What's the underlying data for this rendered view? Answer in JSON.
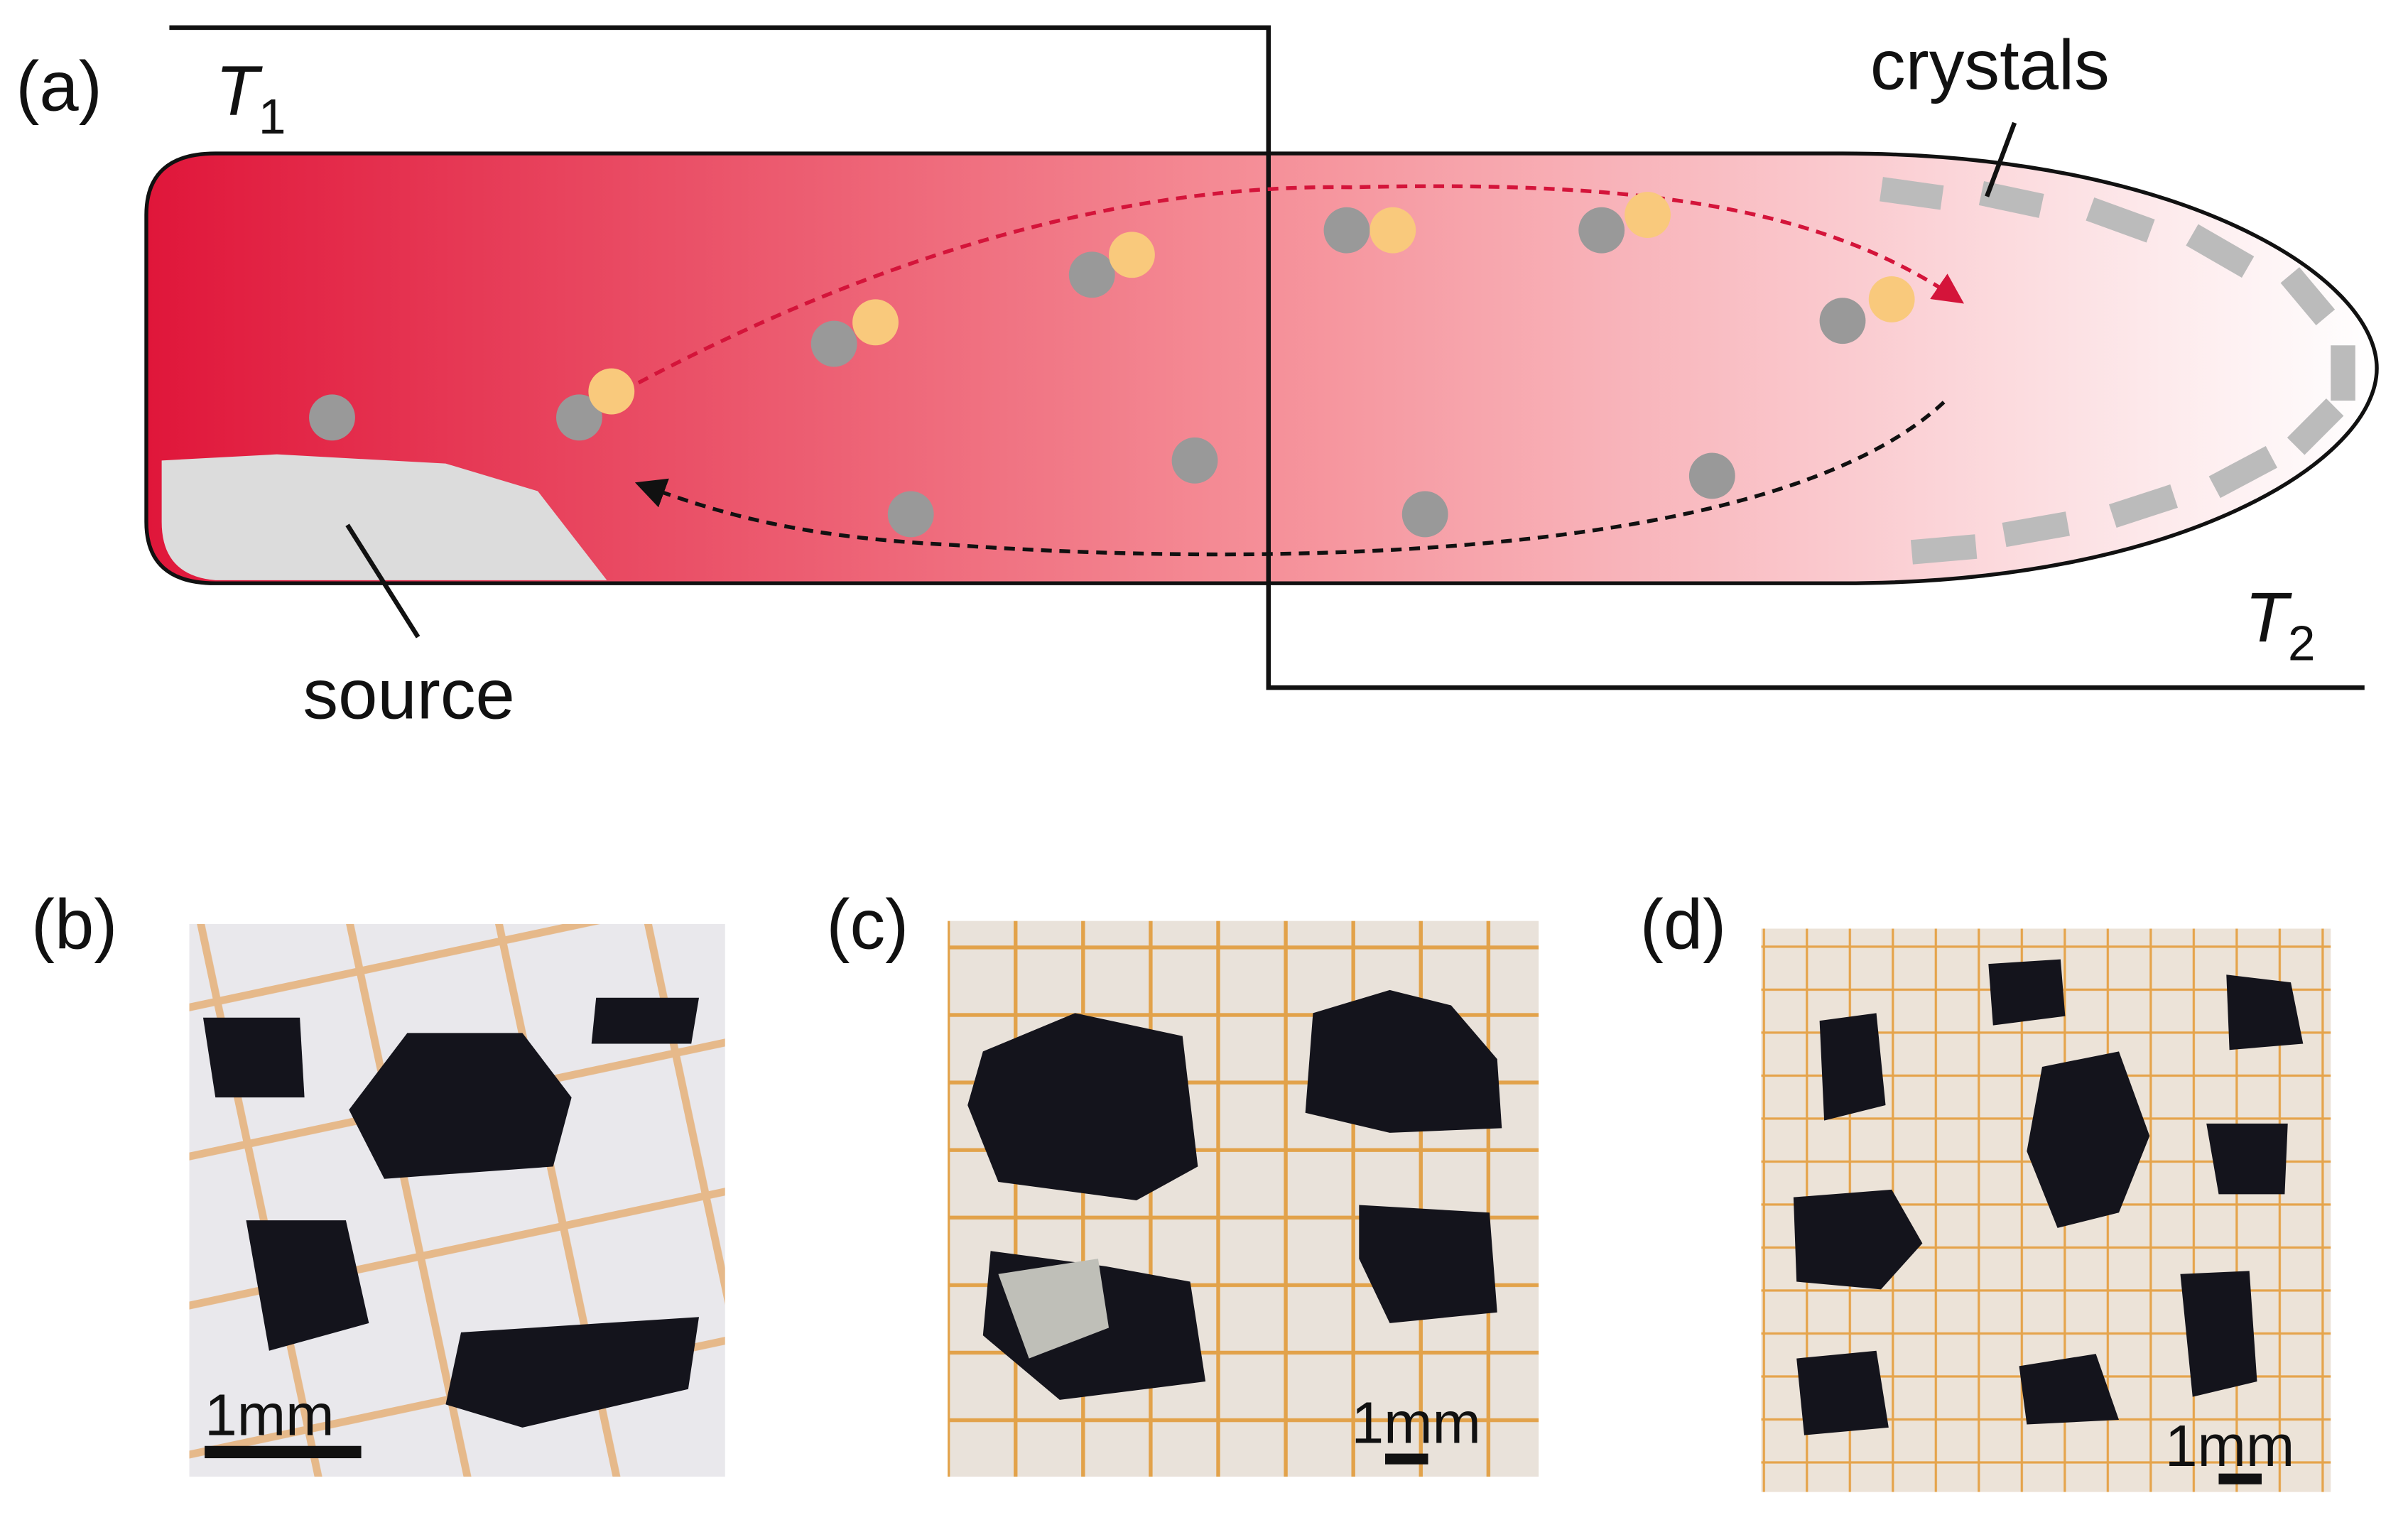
{
  "panel_a": {
    "label": "(a)",
    "t1": {
      "symbol": "T",
      "subscript": "1"
    },
    "t2": {
      "symbol": "T",
      "subscript": "2"
    },
    "crystals_label": "crystals",
    "source_label": "source"
  },
  "photos": [
    {
      "label": "(b)",
      "scale_bar": "1mm"
    },
    {
      "label": "(c)",
      "scale_bar": "1mm"
    },
    {
      "label": "(d)",
      "scale_bar": "1mm"
    }
  ]
}
